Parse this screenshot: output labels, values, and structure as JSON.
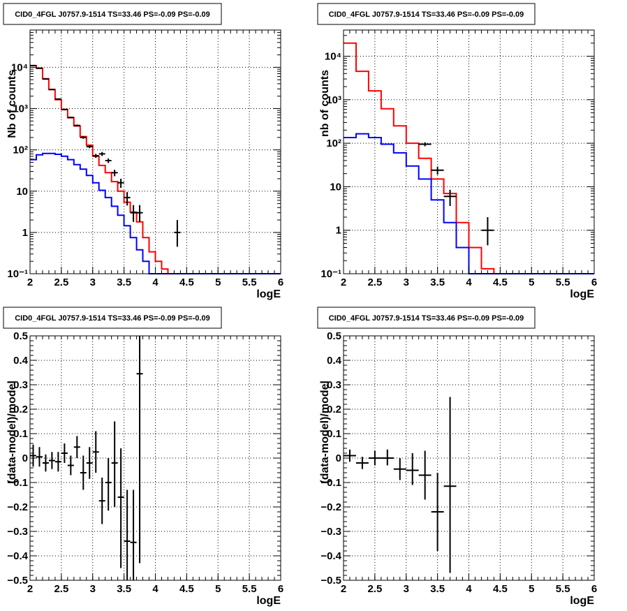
{
  "chart_data": [
    {
      "type": "histogram",
      "title": "CID0_4FGL J0757.9-1514 TS=33.46 PS=-0.09 PS=-0.09",
      "xlabel": "logE",
      "ylabel": "Nb of counts",
      "xlim": [
        2,
        6
      ],
      "ylim": [
        0.1,
        80000
      ],
      "yscale": "log",
      "grid": true,
      "xticks": [
        2,
        2.5,
        3,
        3.5,
        4,
        4.5,
        5,
        5.5,
        6
      ],
      "xtick_labels": [
        "2",
        "2.5",
        "3",
        "3.5",
        "4",
        "4.5",
        "5",
        "5.5",
        "6"
      ],
      "yticks": [
        0.1,
        1,
        10,
        100,
        1000,
        10000
      ],
      "ytick_labels": [
        "10⁻¹",
        "1",
        "10",
        "10²",
        "10³",
        "10⁴"
      ],
      "series": [
        {
          "color": "#ff0000",
          "style": "step",
          "bin_edges": [
            2.0,
            2.1,
            2.2,
            2.3,
            2.4,
            2.5,
            2.6,
            2.7,
            2.8,
            2.9,
            3.0,
            3.1,
            3.2,
            3.3,
            3.4,
            3.5,
            3.6,
            3.7,
            3.8,
            3.9,
            4.0,
            4.1,
            4.2,
            4.3,
            4.4,
            4.5,
            4.6,
            4.7,
            4.8,
            4.9,
            5.0,
            5.1,
            5.2,
            5.3,
            5.4,
            5.5,
            5.6,
            5.7,
            5.8,
            5.9,
            6.0
          ],
          "values": [
            11000,
            9500,
            5300,
            2900,
            1650,
            950,
            600,
            380,
            210,
            130,
            70,
            42,
            28,
            17,
            10,
            5.4,
            3.1,
            1.8,
            0.75,
            0.34,
            0.2,
            0.13,
            0.1,
            0.1,
            0.1,
            0.1,
            0.1,
            0.1,
            0.1,
            0.1,
            0.1,
            0.1,
            0.1,
            0.1,
            0.1,
            0.1,
            0.1,
            0.1,
            0.1,
            0.1
          ]
        },
        {
          "color": "#0000ff",
          "style": "step",
          "bin_edges": [
            2.0,
            2.1,
            2.2,
            2.3,
            2.4,
            2.5,
            2.6,
            2.7,
            2.8,
            2.9,
            3.0,
            3.1,
            3.2,
            3.3,
            3.4,
            3.5,
            3.6,
            3.7,
            3.8,
            3.9,
            4.0,
            4.1,
            4.2,
            4.3,
            4.4,
            4.5,
            4.6,
            4.7,
            4.8,
            4.9,
            5.0,
            5.1,
            5.2,
            5.3,
            5.4,
            5.5,
            5.6,
            5.7,
            5.8,
            5.9,
            6.0
          ],
          "values": [
            58,
            76,
            82,
            82,
            78,
            70,
            58,
            44,
            34,
            24,
            16,
            10.5,
            7,
            4.3,
            2.6,
            1.45,
            0.75,
            0.38,
            0.2,
            0.1,
            0.1,
            0.1,
            0.1,
            0.1,
            0.1,
            0.1,
            0.1,
            0.1,
            0.1,
            0.1,
            0.1,
            0.1,
            0.1,
            0.1,
            0.1,
            0.1,
            0.1,
            0.1,
            0.1,
            0.1
          ]
        },
        {
          "color": "#000000",
          "style": "points",
          "halfwidth": 0.05,
          "x": [
            2.05,
            2.15,
            2.25,
            2.35,
            2.45,
            2.55,
            2.65,
            2.75,
            2.85,
            2.95,
            3.05,
            3.15,
            3.25,
            3.35,
            3.45,
            3.55,
            3.65,
            3.75,
            4.35
          ],
          "y": [
            11000,
            9500,
            5200,
            2900,
            1700,
            950,
            610,
            390,
            200,
            120,
            72,
            80,
            55,
            28,
            16,
            7,
            3,
            3,
            1
          ],
          "ylo": [
            10900,
            9400,
            5130,
            2850,
            1660,
            920,
            585,
            370,
            186,
            110,
            64,
            71,
            48,
            23,
            12,
            4.5,
            1.8,
            1.8,
            0.45
          ],
          "yhi": [
            11100,
            9600,
            5270,
            2950,
            1740,
            980,
            635,
            410,
            214,
            130,
            80,
            89,
            62,
            33,
            20,
            9.5,
            4.6,
            4.6,
            2.0
          ]
        }
      ]
    },
    {
      "type": "histogram",
      "title": "CID0_4FGL J0757.9-1514 TS=33.46 PS=-0.09 PS=-0.09",
      "xlabel": "logE",
      "ylabel": "nb of counts",
      "xlim": [
        2,
        6
      ],
      "ylim": [
        0.1,
        40000
      ],
      "yscale": "log",
      "grid": true,
      "xticks": [
        2,
        2.5,
        3,
        3.5,
        4,
        4.5,
        5,
        5.5,
        6
      ],
      "xtick_labels": [
        "2",
        "2.5",
        "3",
        "3.5",
        "4",
        "4.5",
        "5",
        "5.5",
        "6"
      ],
      "yticks": [
        0.1,
        1,
        10,
        100,
        1000,
        10000
      ],
      "ytick_labels": [
        "10⁻¹",
        "1",
        "10",
        "10²",
        "10³",
        "10⁴"
      ],
      "series": [
        {
          "color": "#ff0000",
          "style": "step",
          "bin_edges": [
            2.0,
            2.2,
            2.4,
            2.6,
            2.8,
            3.0,
            3.2,
            3.4,
            3.6,
            3.8,
            4.0,
            4.2,
            4.4,
            4.6,
            4.8,
            5.0,
            5.2,
            5.4,
            5.6,
            5.8,
            6.0
          ],
          "values": [
            20000,
            4500,
            1600,
            620,
            250,
            100,
            45,
            15,
            7,
            1.5,
            0.4,
            0.13,
            0.1,
            0.1,
            0.1,
            0.1,
            0.1,
            0.1,
            0.1,
            0.1
          ]
        },
        {
          "color": "#0000ff",
          "style": "step",
          "bin_edges": [
            2.0,
            2.2,
            2.4,
            2.6,
            2.8,
            3.0,
            3.2,
            3.4,
            3.6,
            3.8,
            4.0,
            4.2,
            4.4,
            4.6,
            4.8,
            5.0,
            5.2,
            5.4,
            5.6,
            5.8,
            6.0
          ],
          "values": [
            135,
            165,
            135,
            95,
            60,
            30,
            15,
            5,
            1.5,
            0.4,
            0.1,
            0.1,
            0.1,
            0.1,
            0.1,
            0.1,
            0.1,
            0.1,
            0.1,
            0.1
          ]
        },
        {
          "color": "#000000",
          "style": "points",
          "halfwidth": 0.1,
          "x": [
            3.3,
            3.5,
            3.7,
            4.3
          ],
          "y": [
            95,
            24,
            6,
            1
          ],
          "ylo": [
            85,
            19,
            3.6,
            0.45
          ],
          "yhi": [
            105,
            29,
            8.5,
            2.0
          ]
        }
      ]
    },
    {
      "type": "scatter",
      "title": "CID0_4FGL J0757.9-1514 TS=33.46 PS=-0.09 PS=-0.09",
      "xlabel": "logE",
      "ylabel": "(data-model)/model",
      "xlim": [
        2,
        6
      ],
      "ylim": [
        -0.5,
        0.5
      ],
      "yscale": "linear",
      "grid": true,
      "xticks": [
        2,
        2.5,
        3,
        3.5,
        4,
        4.5,
        5,
        5.5,
        6
      ],
      "xtick_labels": [
        "2",
        "2.5",
        "3",
        "3.5",
        "4",
        "4.5",
        "5",
        "5.5",
        "6"
      ],
      "yticks": [
        -0.5,
        -0.4,
        -0.3,
        -0.2,
        -0.1,
        0,
        0.1,
        0.2,
        0.3,
        0.4,
        0.5
      ],
      "ytick_labels": [
        "−0.5",
        "−0.4",
        "−0.3",
        "−0.2",
        "−0.1",
        "0",
        "0.1",
        "0.2",
        "0.3",
        "0.4",
        "0.5"
      ],
      "series": [
        {
          "color": "#000000",
          "style": "points",
          "halfwidth": 0.05,
          "x": [
            2.05,
            2.15,
            2.25,
            2.35,
            2.45,
            2.55,
            2.65,
            2.75,
            2.85,
            2.95,
            3.05,
            3.15,
            3.25,
            3.35,
            3.45,
            3.55,
            3.65,
            3.75
          ],
          "y": [
            0.01,
            0.005,
            -0.02,
            -0.01,
            -0.015,
            0.02,
            -0.03,
            0.045,
            -0.06,
            -0.02,
            0.025,
            -0.175,
            -0.1,
            -0.02,
            -0.16,
            -0.34,
            -0.345,
            0.345
          ],
          "ylo": [
            -0.035,
            -0.035,
            -0.055,
            -0.045,
            -0.055,
            -0.02,
            -0.07,
            0.0,
            -0.13,
            -0.085,
            -0.06,
            -0.27,
            -0.215,
            -0.2,
            -0.45,
            -0.5,
            -0.5,
            -0.43
          ],
          "yhi": [
            0.055,
            0.045,
            0.015,
            0.025,
            0.025,
            0.06,
            0.01,
            0.09,
            0.01,
            0.045,
            0.11,
            -0.08,
            0.0,
            0.15,
            0.04,
            -0.13,
            -0.13,
            0.5
          ]
        }
      ]
    },
    {
      "type": "scatter",
      "title": "CID0_4FGL J0757.9-1514 TS=33.46 PS=-0.09 PS=-0.09",
      "xlabel": "logE",
      "ylabel": "(data-model)/model",
      "xlim": [
        2,
        6
      ],
      "ylim": [
        -0.5,
        0.5
      ],
      "yscale": "linear",
      "grid": true,
      "xticks": [
        2,
        2.5,
        3,
        3.5,
        4,
        4.5,
        5,
        5.5,
        6
      ],
      "xtick_labels": [
        "2",
        "2.5",
        "3",
        "3.5",
        "4",
        "4.5",
        "5",
        "5.5",
        "6"
      ],
      "yticks": [
        -0.5,
        -0.4,
        -0.3,
        -0.2,
        -0.1,
        0,
        0.1,
        0.2,
        0.3,
        0.4,
        0.5
      ],
      "ytick_labels": [
        "−0.5",
        "−0.4",
        "−0.3",
        "−0.2",
        "−0.1",
        "0",
        "0.1",
        "0.2",
        "0.3",
        "0.4",
        "0.5"
      ],
      "series": [
        {
          "color": "#000000",
          "style": "points",
          "halfwidth": 0.1,
          "x": [
            2.1,
            2.3,
            2.5,
            2.7,
            2.9,
            3.1,
            3.3,
            3.5,
            3.7
          ],
          "y": [
            0.01,
            -0.02,
            0.0,
            0.0,
            -0.045,
            -0.05,
            -0.07,
            -0.22,
            -0.115
          ],
          "ylo": [
            -0.015,
            -0.045,
            -0.03,
            -0.03,
            -0.09,
            -0.11,
            -0.17,
            -0.38,
            -0.47
          ],
          "yhi": [
            0.035,
            0.005,
            0.03,
            0.035,
            0.0,
            0.02,
            0.03,
            -0.06,
            0.25
          ]
        }
      ]
    }
  ]
}
